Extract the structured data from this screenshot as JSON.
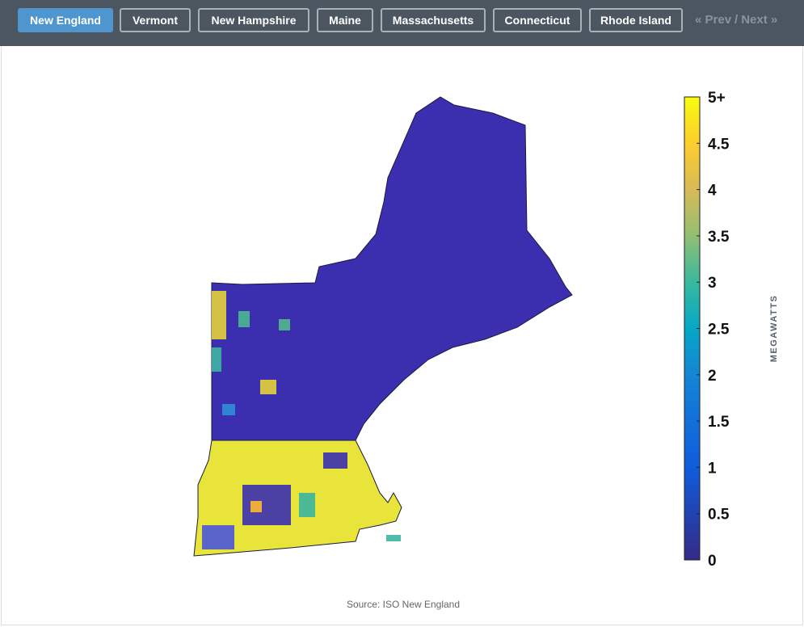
{
  "nav": {
    "tabs": [
      "New England",
      "Vermont",
      "New Hampshire",
      "Maine",
      "Massachusetts",
      "Connecticut",
      "Rhode Island"
    ],
    "active": 0,
    "prev": "« Prev",
    "separator": "/",
    "next": "Next »"
  },
  "colorbar": {
    "label": "MEGAWATTS",
    "lim": [
      0,
      5
    ],
    "ticks": [
      {
        "value": 5,
        "label": "5+"
      },
      4.5,
      4,
      3.5,
      3,
      2.5,
      2,
      1.5,
      1,
      0.5,
      0
    ]
  },
  "source": "Source: ISO New England"
}
